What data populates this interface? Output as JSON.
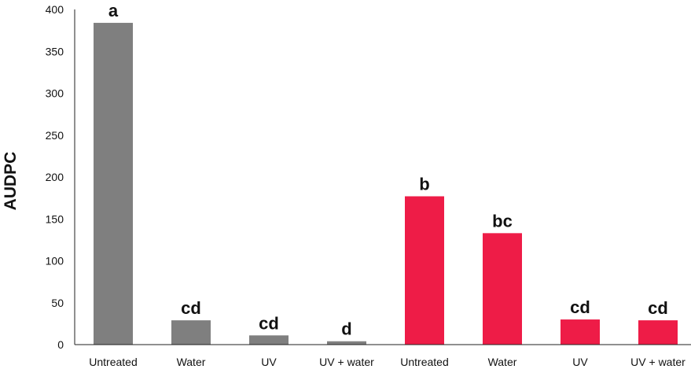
{
  "chart_data": {
    "type": "bar",
    "ylabel": "AUDPC",
    "xlabel": "",
    "ylim": [
      0,
      400
    ],
    "yticks": [
      0,
      50,
      100,
      150,
      200,
      250,
      300,
      350,
      400
    ],
    "grid": false,
    "categories": [
      "Untreated",
      "Water",
      "UV",
      "UV + water",
      "Untreated",
      "Water",
      "UV",
      "UV + water"
    ],
    "values": [
      384,
      29,
      11,
      4,
      177,
      133,
      30,
      29
    ],
    "labels": [
      "a",
      "cd",
      "cd",
      "d",
      "b",
      "bc",
      "cd",
      "cd"
    ],
    "colors": [
      "#7f7f7f",
      "#7f7f7f",
      "#7f7f7f",
      "#7f7f7f",
      "#ee1c47",
      "#ee1c47",
      "#ee1c47",
      "#ee1c47"
    ]
  }
}
